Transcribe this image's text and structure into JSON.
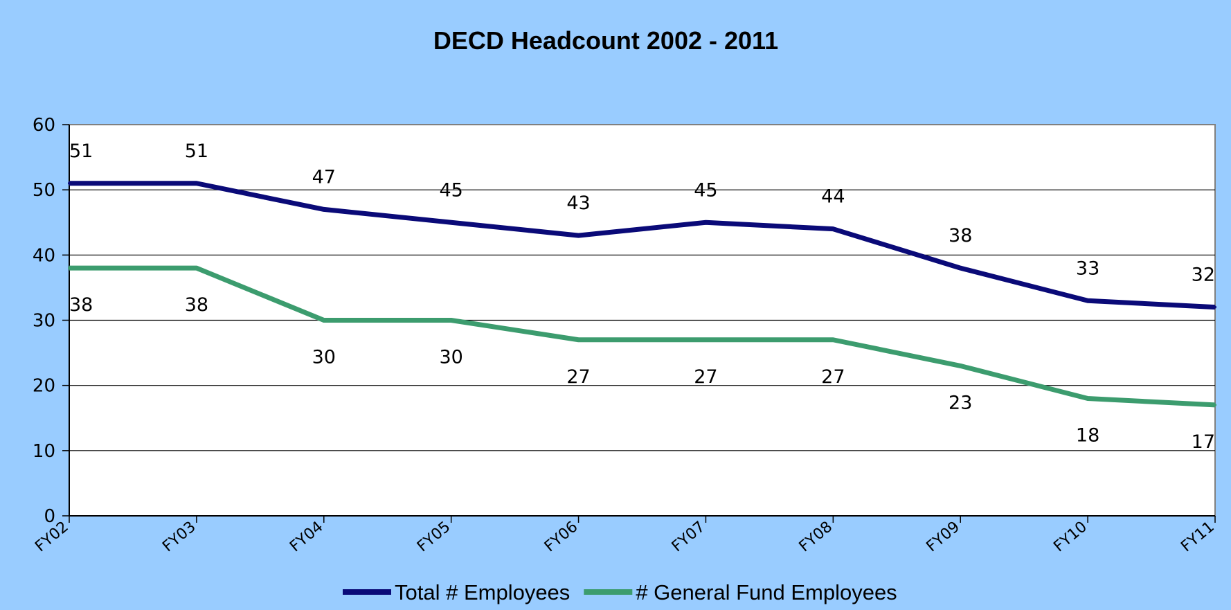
{
  "chart_data": {
    "type": "line",
    "title": "DECD Headcount 2002 - 2011",
    "xlabel": "",
    "ylabel": "",
    "categories": [
      "FY02",
      "FY03",
      "FY04",
      "FY05",
      "FY06",
      "FY07",
      "FY08",
      "FY09",
      "FY10",
      "FY11"
    ],
    "series": [
      {
        "name": "Total # Employees",
        "color": "#0a0a78",
        "values": [
          51,
          51,
          47,
          45,
          43,
          45,
          44,
          38,
          33,
          32
        ],
        "label_position": "above"
      },
      {
        "name": "# General Fund Employees",
        "color": "#3c9c6e",
        "values": [
          38,
          38,
          30,
          30,
          27,
          27,
          27,
          23,
          18,
          17
        ],
        "label_position": "below"
      }
    ],
    "ylim": [
      0,
      60
    ],
    "yticks": [
      0,
      10,
      20,
      30,
      40,
      50,
      60
    ],
    "grid": true,
    "legend_position": "bottom"
  }
}
